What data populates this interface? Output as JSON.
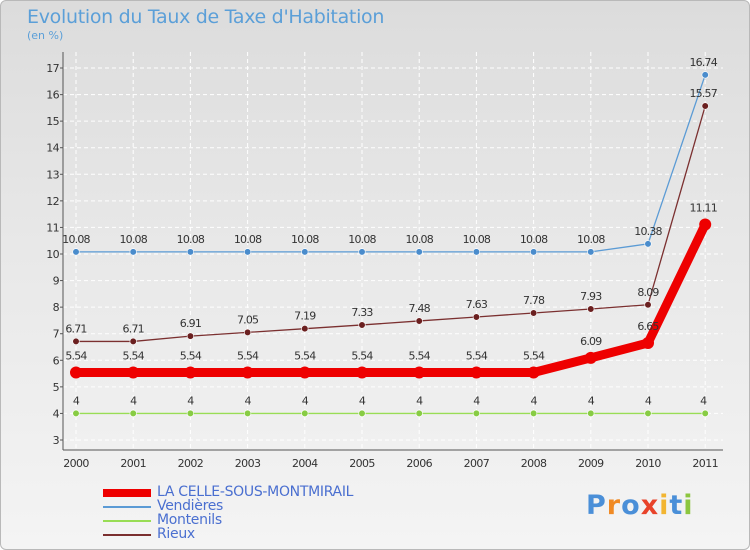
{
  "title": "Evolution du Taux de Taxe d'Habitation",
  "unit_label": "(en %)",
  "logo": {
    "text": "Proxiti",
    "colors": [
      "#4a8fd8",
      "#f08a24",
      "#4a8fd8",
      "#e8432a",
      "#f2b531",
      "#4a8fd8",
      "#8cc63f"
    ]
  },
  "chart_data": {
    "type": "line",
    "title": "Evolution du Taux de Taxe d'Habitation",
    "ylabel": "(en %)",
    "xlabel": "",
    "ylim": [
      3,
      17
    ],
    "grid": true,
    "categories": [
      "2000",
      "2001",
      "2002",
      "2003",
      "2004",
      "2005",
      "2006",
      "2007",
      "2008",
      "2009",
      "2010",
      "2011"
    ],
    "yticks": [
      3,
      4,
      5,
      6,
      7,
      8,
      9,
      10,
      11,
      12,
      13,
      14,
      15,
      16,
      17
    ],
    "series": [
      {
        "name": "Vendières",
        "color": "#5b9bd5",
        "marker": "#4a8ccc",
        "values": [
          10.08,
          10.08,
          10.08,
          10.08,
          10.08,
          10.08,
          10.08,
          10.08,
          10.08,
          10.08,
          10.38,
          16.74
        ],
        "labels": [
          "10.08",
          "10.08",
          "10.08",
          "10.08",
          "10.08",
          "10.08",
          "10.08",
          "10.08",
          "10.08",
          "10.08",
          "10.38",
          "16.74"
        ]
      },
      {
        "name": "Rieux",
        "color": "#7b3030",
        "marker": "#6b2020",
        "values": [
          6.71,
          6.71,
          6.91,
          7.05,
          7.19,
          7.33,
          7.48,
          7.63,
          7.78,
          7.93,
          8.09,
          15.57
        ],
        "labels": [
          "6.71",
          "6.71",
          "6.91",
          "7.05",
          "7.19",
          "7.33",
          "7.48",
          "7.63",
          "7.78",
          "7.93",
          "8.09",
          "15.57"
        ]
      },
      {
        "name": "Montenils",
        "color": "#99dd55",
        "marker": "#88cc44",
        "values": [
          4,
          4,
          4,
          4,
          4,
          4,
          4,
          4,
          4,
          4,
          4,
          4
        ],
        "labels": [
          "4",
          "4",
          "4",
          "4",
          "4",
          "4",
          "4",
          "4",
          "4",
          "4",
          "4",
          "4"
        ]
      },
      {
        "name": "LA CELLE-SOUS-MONTMIRAIL",
        "color": "#ee0000",
        "marker": "#ee0000",
        "values": [
          5.54,
          5.54,
          5.54,
          5.54,
          5.54,
          5.54,
          5.54,
          5.54,
          5.54,
          6.09,
          6.65,
          11.11
        ],
        "labels": [
          "5.54",
          "5.54",
          "5.54",
          "5.54",
          "5.54",
          "5.54",
          "5.54",
          "5.54",
          "5.54",
          "6.09",
          "6.65",
          "11.11"
        ]
      }
    ],
    "legend": [
      {
        "name": "LA CELLE-SOUS-MONTMIRAIL",
        "color": "#ee0000"
      },
      {
        "name": "Vendières",
        "color": "#5b9bd5"
      },
      {
        "name": "Montenils",
        "color": "#99dd55"
      },
      {
        "name": "Rieux",
        "color": "#7b3030"
      }
    ]
  }
}
